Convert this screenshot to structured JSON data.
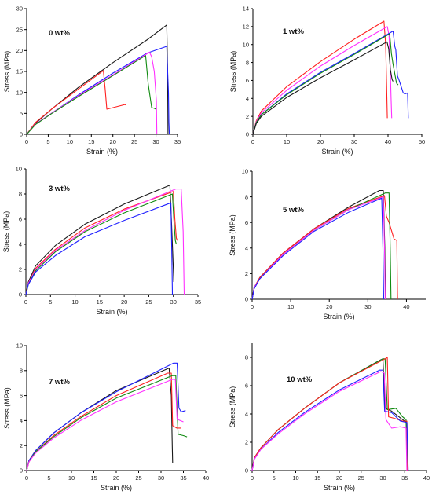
{
  "figure": {
    "background": "#ffffff",
    "axis_color": "#000000",
    "colors": {
      "black": "#1a1a1a",
      "red": "#ff2020",
      "blue": "#2020ff",
      "magenta": "#ff30ff",
      "green": "#108a10"
    }
  },
  "chart_data": [
    {
      "type": "line",
      "title": "0 wt%",
      "xlabel": "Strain (%)",
      "ylabel": "Stress (MPa)",
      "xlim": [
        0,
        35
      ],
      "ylim": [
        0,
        30
      ],
      "xticks": [
        0,
        5,
        10,
        15,
        20,
        25,
        30,
        35
      ],
      "yticks": [
        0,
        5,
        10,
        15,
        20,
        25,
        30
      ],
      "grid": false,
      "series": [
        {
          "color": "black",
          "x": [
            0,
            2,
            6,
            12,
            20,
            28,
            32.5,
            32.7,
            32.8
          ],
          "y": [
            0,
            2.6,
            6.2,
            11.2,
            17.1,
            22.6,
            26.1,
            15,
            0
          ]
        },
        {
          "color": "red",
          "x": [
            0,
            2,
            6,
            12,
            17.8,
            18.2,
            18.6,
            22.8,
            23
          ],
          "y": [
            0,
            2.8,
            6.2,
            10.8,
            15.2,
            11,
            6,
            7.1,
            7
          ]
        },
        {
          "color": "blue",
          "x": [
            0,
            2,
            6,
            12,
            20,
            28,
            32.5,
            32.6,
            32.9,
            33,
            33.1
          ],
          "y": [
            0,
            2.4,
            5.2,
            9.4,
            14.6,
            19.4,
            21,
            18,
            10,
            3,
            0
          ]
        },
        {
          "color": "magenta",
          "x": [
            0,
            2,
            6,
            12,
            20,
            28.5,
            29,
            29.6,
            30.1,
            30.2
          ],
          "y": [
            0,
            2.4,
            5.2,
            9.2,
            14.2,
            19.6,
            18.5,
            15,
            8,
            0
          ]
        },
        {
          "color": "green",
          "x": [
            0,
            2,
            6,
            12,
            20,
            27.6,
            28.2,
            29,
            29.6,
            30
          ],
          "y": [
            0,
            2.3,
            5.1,
            9,
            14,
            18.8,
            12,
            6.4,
            6.2,
            6
          ]
        }
      ]
    },
    {
      "type": "line",
      "title": "1 wt%",
      "xlabel": "Strain (%)",
      "ylabel": "Stress (MPa)",
      "xlim": [
        0,
        50
      ],
      "ylim": [
        0,
        14
      ],
      "xticks": [
        0,
        10,
        20,
        30,
        40,
        50
      ],
      "yticks": [
        0,
        2,
        4,
        6,
        8,
        10,
        12,
        14
      ],
      "grid": false,
      "series": [
        {
          "color": "red",
          "x": [
            0,
            1,
            2.5,
            10,
            20,
            30,
            38.8,
            39.3,
            39.6,
            39.8
          ],
          "y": [
            0,
            1.5,
            2.6,
            5.3,
            8.1,
            10.6,
            12.6,
            10,
            5,
            1.8
          ]
        },
        {
          "color": "magenta",
          "x": [
            0,
            1,
            2.5,
            10,
            20,
            30,
            39.8,
            40.3,
            40.6,
            40.9,
            41.1
          ],
          "y": [
            0,
            1.4,
            2.4,
            4.9,
            7.6,
            9.9,
            12,
            11,
            8,
            4,
            1.8
          ]
        },
        {
          "color": "blue",
          "x": [
            0,
            1,
            2.5,
            10,
            20,
            30,
            41.5,
            42,
            42.3,
            42.8,
            43.3,
            44.5,
            45,
            45.8,
            46
          ],
          "y": [
            0,
            1.3,
            2.2,
            4.5,
            6.9,
            9,
            11.5,
            9.8,
            9.4,
            6.5,
            6,
            4.6,
            4.5,
            4.6,
            1.8
          ]
        },
        {
          "color": "green",
          "x": [
            0,
            1,
            2.5,
            10,
            20,
            30,
            40.5,
            41,
            41.5,
            42.5,
            43
          ],
          "y": [
            0,
            1.3,
            2.2,
            4.4,
            6.8,
            8.9,
            11.2,
            9,
            7.8,
            5.7,
            5.5
          ]
        },
        {
          "color": "black",
          "x": [
            0,
            1,
            2.5,
            10,
            20,
            30,
            39.7,
            40.2,
            40.7,
            41.2,
            41.5
          ],
          "y": [
            0,
            1.2,
            2,
            4.1,
            6.3,
            8.3,
            10.3,
            9.5,
            7.2,
            6.1,
            5.9
          ]
        }
      ]
    },
    {
      "type": "line",
      "title": "3 wt%",
      "xlabel": "Strain (%)",
      "ylabel": "Stress (MPa)",
      "xlim": [
        0,
        35
      ],
      "ylim": [
        0,
        10
      ],
      "xticks": [
        0,
        5,
        10,
        15,
        20,
        25,
        30,
        35
      ],
      "yticks": [
        0,
        2,
        4,
        6,
        8,
        10
      ],
      "grid": false,
      "series": [
        {
          "color": "black",
          "x": [
            0,
            0.5,
            2,
            6,
            12,
            20,
            29.3,
            29.6,
            29.9,
            30.1
          ],
          "y": [
            0,
            1,
            2.3,
            3.9,
            5.6,
            7.2,
            8.7,
            6,
            3,
            1
          ]
        },
        {
          "color": "red",
          "x": [
            0,
            0.5,
            2,
            6,
            12,
            20,
            30,
            30.3,
            30.6,
            30.8
          ],
          "y": [
            0,
            0.9,
            2.1,
            3.6,
            5.3,
            6.8,
            8.2,
            6,
            4.5,
            4.3
          ]
        },
        {
          "color": "magenta",
          "x": [
            0,
            0.5,
            2,
            6,
            12,
            20,
            30.5,
            31.6,
            32,
            32.2
          ],
          "y": [
            0,
            0.9,
            2,
            3.5,
            5.1,
            6.7,
            8.4,
            8.4,
            5,
            0
          ]
        },
        {
          "color": "green",
          "x": [
            0,
            0.5,
            2,
            6,
            12,
            20,
            29.8,
            30.1,
            30.4,
            30.6
          ],
          "y": [
            0,
            0.8,
            1.9,
            3.4,
            5,
            6.5,
            8,
            6,
            4.3,
            4
          ]
        },
        {
          "color": "blue",
          "x": [
            0,
            0.5,
            2,
            6,
            12,
            20,
            29.5,
            29.7,
            29.8
          ],
          "y": [
            0,
            0.8,
            1.8,
            3.1,
            4.6,
            5.9,
            7.3,
            3,
            0
          ]
        }
      ]
    },
    {
      "type": "line",
      "title": "5 wt%",
      "xlabel": "Strain (%)",
      "ylabel": "Stress (MPa)",
      "xlim": [
        0,
        45
      ],
      "ylim": [
        0,
        10
      ],
      "xticks": [
        0,
        10,
        20,
        30,
        40
      ],
      "yticks": [
        0,
        2,
        4,
        6,
        8,
        10
      ],
      "grid": false,
      "series": [
        {
          "color": "black",
          "x": [
            0,
            0.5,
            2,
            8,
            16,
            25,
            33,
            34,
            34.4,
            34.6
          ],
          "y": [
            0,
            0.9,
            1.7,
            3.6,
            5.5,
            7.2,
            8.5,
            8.5,
            4,
            0
          ]
        },
        {
          "color": "red",
          "x": [
            0,
            0.5,
            2,
            8,
            16,
            25,
            34.3,
            34.8,
            35.5,
            36.8,
            37.5,
            37.7
          ],
          "y": [
            0,
            0.9,
            1.7,
            3.6,
            5.5,
            7.1,
            8.1,
            6.5,
            6,
            4.7,
            4.6,
            0
          ]
        },
        {
          "color": "green",
          "x": [
            0,
            0.5,
            2,
            8,
            16,
            25,
            34.5,
            35.5,
            35.8,
            36
          ],
          "y": [
            0,
            0.9,
            1.6,
            3.5,
            5.4,
            7,
            8.3,
            8.3,
            4,
            0
          ]
        },
        {
          "color": "magenta",
          "x": [
            0,
            0.5,
            2,
            8,
            16,
            25,
            34,
            34.3,
            34.5
          ],
          "y": [
            0,
            0.9,
            1.6,
            3.5,
            5.4,
            7,
            8,
            4,
            0
          ]
        },
        {
          "color": "blue",
          "x": [
            0,
            0.5,
            2,
            8,
            16,
            25,
            33.6,
            33.9,
            34.1
          ],
          "y": [
            0,
            0.8,
            1.6,
            3.4,
            5.3,
            6.8,
            7.9,
            4,
            0
          ]
        }
      ]
    },
    {
      "type": "line",
      "title": "7 wt%",
      "xlabel": "Strain (%)",
      "ylabel": "Stress (MPa)",
      "xlim": [
        0,
        40
      ],
      "ylim": [
        0,
        10
      ],
      "xticks": [
        0,
        5,
        10,
        15,
        20,
        25,
        30,
        35,
        40
      ],
      "yticks": [
        0,
        2,
        4,
        6,
        8,
        10
      ],
      "grid": false,
      "series": [
        {
          "color": "black",
          "x": [
            0,
            0.5,
            2,
            6,
            12,
            20,
            31.8,
            32.3,
            32.5,
            32.6
          ],
          "y": [
            0,
            0.8,
            1.6,
            3,
            4.6,
            6.4,
            8.2,
            6,
            2,
            0.6
          ]
        },
        {
          "color": "blue",
          "x": [
            0,
            0.5,
            2,
            6,
            12,
            20,
            32.8,
            33.6,
            34,
            34.5,
            35.5
          ],
          "y": [
            0,
            0.8,
            1.6,
            3,
            4.6,
            6.3,
            8.6,
            8.6,
            5,
            4.7,
            4.8
          ]
        },
        {
          "color": "red",
          "x": [
            0,
            0.5,
            2,
            6,
            12,
            20,
            31.5,
            32.3,
            32.6,
            33.5,
            34.5
          ],
          "y": [
            0,
            0.7,
            1.5,
            2.8,
            4.3,
            6,
            7.8,
            7.8,
            3.6,
            3.4,
            3.4
          ]
        },
        {
          "color": "green",
          "x": [
            0,
            0.5,
            2,
            6,
            12,
            20,
            32.5,
            33.3,
            33.8,
            35,
            35.8
          ],
          "y": [
            0,
            0.7,
            1.5,
            2.7,
            4.2,
            5.8,
            7.6,
            7.6,
            2.9,
            2.8,
            2.7
          ]
        },
        {
          "color": "magenta",
          "x": [
            0,
            0.5,
            2,
            6,
            12,
            20,
            32.6,
            33.2,
            33.6,
            35
          ],
          "y": [
            0,
            0.7,
            1.4,
            2.6,
            4,
            5.5,
            7.3,
            7.3,
            4.1,
            3.9
          ]
        }
      ]
    },
    {
      "type": "line",
      "title": "10 wt%",
      "xlabel": "Strain (%)",
      "ylabel": "Stress (MPa)",
      "xlim": [
        0,
        40
      ],
      "ylim": [
        0,
        9
      ],
      "xticks": [
        0,
        5,
        10,
        15,
        20,
        25,
        30,
        35,
        40
      ],
      "yticks": [
        0,
        2,
        4,
        6,
        8
      ],
      "grid": false,
      "series": [
        {
          "color": "black",
          "x": [
            0,
            0.5,
            2,
            6,
            12,
            20,
            29.3,
            30,
            30.5,
            32,
            34.5,
            35.5,
            35.7
          ],
          "y": [
            0,
            0.9,
            1.6,
            2.9,
            4.4,
            6.2,
            7.8,
            7.9,
            4.4,
            4.2,
            3.6,
            3.4,
            0
          ]
        },
        {
          "color": "green",
          "x": [
            0,
            0.5,
            2,
            6,
            12,
            20,
            30,
            30.5,
            31,
            33,
            34.5,
            35.3,
            35.6
          ],
          "y": [
            0,
            0.9,
            1.6,
            2.9,
            4.4,
            6.2,
            7.9,
            7.9,
            4.3,
            4.4,
            3.8,
            3.6,
            0
          ]
        },
        {
          "color": "red",
          "x": [
            0,
            0.5,
            2,
            6,
            12,
            20,
            30.5,
            31,
            31.3,
            32.5,
            34.5,
            35.5,
            35.7
          ],
          "y": [
            0,
            0.9,
            1.6,
            2.9,
            4.4,
            6.2,
            7.9,
            8,
            3.8,
            3.7,
            3.5,
            3.5,
            0
          ]
        },
        {
          "color": "blue",
          "x": [
            0,
            0.5,
            2,
            6,
            12,
            20,
            29.2,
            30,
            30.4,
            32,
            34,
            35.5,
            35.8
          ],
          "y": [
            0,
            0.8,
            1.5,
            2.7,
            4.1,
            5.7,
            7.1,
            7.1,
            4.2,
            4.1,
            3.5,
            3.4,
            0
          ]
        },
        {
          "color": "magenta",
          "x": [
            0,
            0.5,
            2,
            6,
            12,
            20,
            29.5,
            30.3,
            30.7,
            32,
            34,
            35.3,
            35.5
          ],
          "y": [
            0,
            0.8,
            1.5,
            2.6,
            4,
            5.6,
            7,
            6.9,
            3.6,
            3,
            3.1,
            3,
            0
          ]
        }
      ]
    }
  ]
}
